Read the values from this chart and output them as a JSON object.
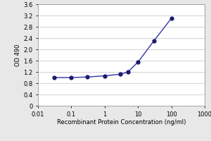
{
  "x": [
    0.03,
    0.1,
    0.3,
    1,
    3,
    5,
    10,
    30,
    100
  ],
  "y": [
    1.0,
    1.0,
    1.02,
    1.06,
    1.12,
    1.2,
    1.55,
    2.3,
    3.1
  ],
  "xlabel": "Recombinant Protein Concentration (ng/ml)",
  "ylabel": "OD 490",
  "xmin": 0.01,
  "xmax": 1000,
  "ymin": 0,
  "ymax": 3.6,
  "yticks": [
    0,
    0.4,
    0.8,
    1.2,
    1.6,
    2.0,
    2.4,
    2.8,
    3.2,
    3.6
  ],
  "ytick_labels": [
    "0",
    "0.4",
    "0.8",
    "1.2",
    "1.6",
    "2.0",
    "2.4",
    "2.8",
    "3.2",
    "3.6"
  ],
  "xtick_locs": [
    0.01,
    0.1,
    1,
    10,
    100,
    1000
  ],
  "xtick_labels": [
    "0.01",
    "0.1",
    "1",
    "10",
    "100",
    "1000"
  ],
  "line_color": "#3333aa",
  "marker_color": "#1a1a6e",
  "bg_color": "#e8e8e8",
  "plot_bg_color": "#ffffff",
  "grid_color": "#cccccc",
  "label_fontsize": 6.0,
  "tick_fontsize": 6.0
}
